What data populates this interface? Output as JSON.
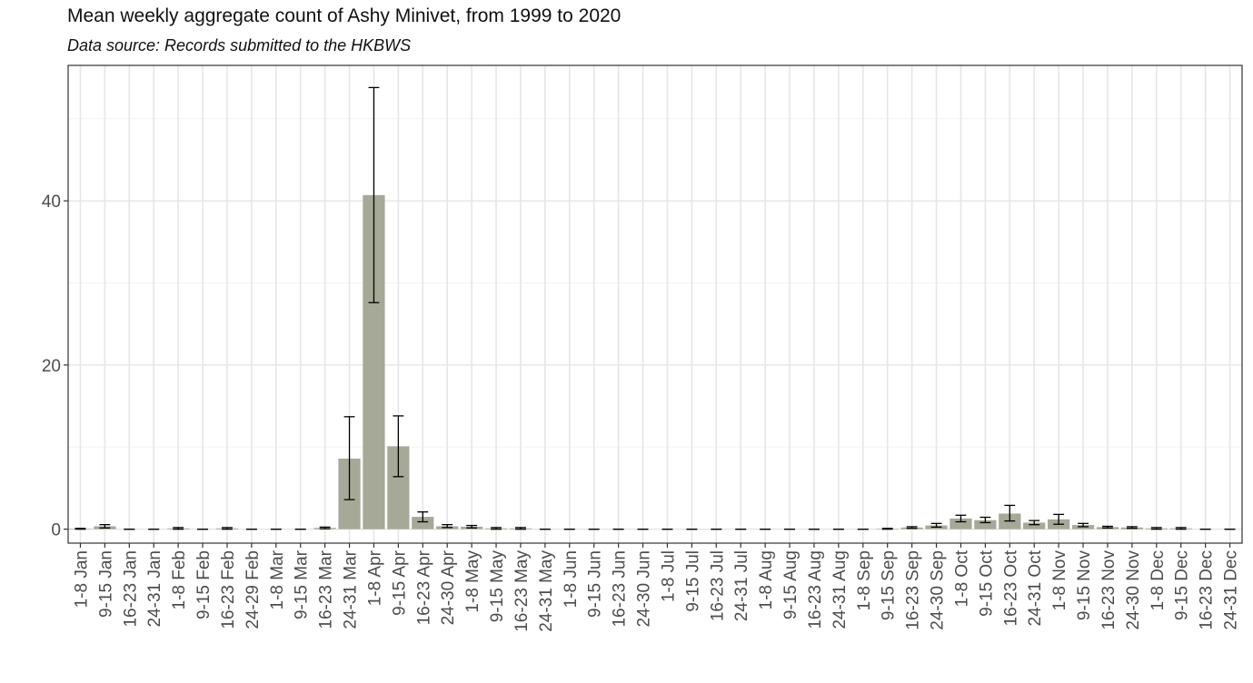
{
  "chart_data": {
    "type": "bar",
    "title": "Mean weekly aggregate count of Ashy Minivet, from 1999 to 2020",
    "subtitle": "Data source: Records submitted to the HKBWS",
    "xlabel": "",
    "ylabel": "",
    "ylim": [
      -1.7,
      56.5
    ],
    "yticks": [
      0,
      20,
      40
    ],
    "grid": true,
    "legend": "none",
    "bar_color": "#a6a898",
    "errorbar_color": "#000000",
    "categories": [
      "1-8 Jan",
      "9-15 Jan",
      "16-23 Jan",
      "24-31 Jan",
      "1-8 Feb",
      "9-15 Feb",
      "16-23 Feb",
      "24-29 Feb",
      "1-8 Mar",
      "9-15 Mar",
      "16-23 Mar",
      "24-31 Mar",
      "1-8 Apr",
      "9-15 Apr",
      "16-23 Apr",
      "24-30 Apr",
      "1-8 May",
      "9-15 May",
      "16-23 May",
      "24-31 May",
      "1-8 Jun",
      "9-15 Jun",
      "16-23 Jun",
      "24-30 Jun",
      "1-8 Jul",
      "9-15 Jul",
      "16-23 Jul",
      "24-31 Jul",
      "1-8 Aug",
      "9-15 Aug",
      "16-23 Aug",
      "24-31 Aug",
      "1-8 Sep",
      "9-15 Sep",
      "16-23 Sep",
      "24-30 Sep",
      "1-8 Oct",
      "9-15 Oct",
      "16-23 Oct",
      "24-31 Oct",
      "1-8 Nov",
      "9-15 Nov",
      "16-23 Nov",
      "24-30 Nov",
      "1-8 Dec",
      "9-15 Dec",
      "16-23 Dec",
      "24-31 Dec"
    ],
    "values": [
      0.05,
      0.35,
      0,
      0,
      0.1,
      0,
      0.1,
      0,
      0,
      0,
      0.15,
      8.6,
      40.7,
      10.1,
      1.5,
      0.35,
      0.3,
      0.1,
      0.1,
      0,
      0,
      0,
      0,
      0,
      0,
      0,
      0,
      0,
      0,
      0,
      0,
      0,
      0,
      0.05,
      0.2,
      0.45,
      1.3,
      1.1,
      1.9,
      0.8,
      1.2,
      0.5,
      0.25,
      0.2,
      0.1,
      0.1,
      0,
      0
    ],
    "error_low": [
      0,
      0.15,
      0,
      0,
      0,
      0,
      0,
      0,
      0,
      0,
      0.05,
      3.6,
      27.6,
      6.4,
      0.9,
      0.2,
      0.15,
      0,
      0,
      0,
      0,
      0,
      0,
      0,
      0,
      0,
      0,
      0,
      0,
      0,
      0,
      0,
      0,
      0,
      0.1,
      0.25,
      0.9,
      0.8,
      1.0,
      0.55,
      0.6,
      0.3,
      0.15,
      0.1,
      0,
      0,
      0,
      0
    ],
    "error_high": [
      0.1,
      0.55,
      0,
      0,
      0.2,
      0,
      0.2,
      0,
      0,
      0,
      0.25,
      13.7,
      53.8,
      13.8,
      2.1,
      0.55,
      0.45,
      0.2,
      0.2,
      0,
      0,
      0,
      0,
      0,
      0,
      0,
      0,
      0,
      0,
      0,
      0,
      0,
      0,
      0.1,
      0.3,
      0.7,
      1.7,
      1.45,
      2.9,
      1.05,
      1.8,
      0.7,
      0.35,
      0.3,
      0.2,
      0.2,
      0,
      0
    ]
  }
}
